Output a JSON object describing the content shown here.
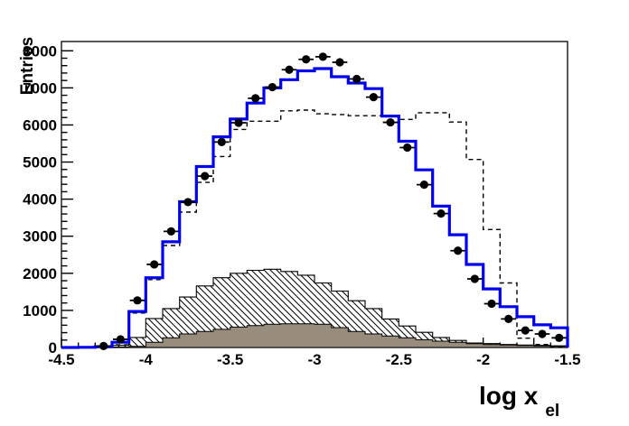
{
  "figure": {
    "ylabel": "Entries",
    "xlabel": "log x",
    "xlabel_subscript": "el",
    "background_color": "#ffffff",
    "frame_color": "#000000"
  },
  "chart_data": {
    "type": "histogram",
    "title": "",
    "xlabel": "log x_el",
    "ylabel": "Entries",
    "xlim": [
      -4.5,
      -1.5
    ],
    "ylim": [
      0,
      8250
    ],
    "bin_start": -4.5,
    "bin_width": 0.1,
    "grid": false,
    "legend": "none",
    "xticks": {
      "major": [
        -4.5,
        -4.0,
        -3.5,
        -3.0,
        -2.5,
        -2.0,
        -1.5
      ],
      "labels": [
        "-4.5",
        "-4",
        "-3.5",
        "-3",
        "-2.5",
        "-2",
        "-1.5"
      ],
      "minor_step": 0.1
    },
    "yticks": {
      "major_step": 1000,
      "labels": [
        "0",
        "1000",
        "2000",
        "3000",
        "4000",
        "5000",
        "6000",
        "7000",
        "8000"
      ],
      "minor_step": 200
    },
    "bin_centers": [
      -4.45,
      -4.35,
      -4.25,
      -4.15,
      -4.05,
      -3.95,
      -3.85,
      -3.75,
      -3.65,
      -3.55,
      -3.45,
      -3.35,
      -3.25,
      -3.15,
      -3.05,
      -2.95,
      -2.85,
      -2.75,
      -2.65,
      -2.55,
      -2.45,
      -2.35,
      -2.25,
      -2.15,
      -2.05,
      -1.95,
      -1.85,
      -1.75,
      -1.65,
      -1.55
    ],
    "series": [
      {
        "name": "data-points",
        "style": "black filled circle markers with horizontal error bars",
        "color": "#000000",
        "x": [
          -4.25,
          -4.15,
          -4.05,
          -3.95,
          -3.85,
          -3.75,
          -3.65,
          -3.55,
          -3.45,
          -3.35,
          -3.25,
          -3.15,
          -3.05,
          -2.95,
          -2.85,
          -2.75,
          -2.65,
          -2.55,
          -2.45,
          -2.35,
          -2.25,
          -2.15,
          -2.05,
          -1.95,
          -1.85,
          -1.75,
          -1.65,
          -1.55
        ],
        "values": [
          40,
          220,
          1270,
          2240,
          3130,
          3920,
          4620,
          5540,
          6060,
          6720,
          7020,
          7490,
          7770,
          7840,
          7690,
          7240,
          6750,
          6070,
          5390,
          4390,
          3610,
          2610,
          1850,
          1180,
          770,
          460,
          365,
          260
        ]
      },
      {
        "name": "blue-fit",
        "style": "solid step histogram line",
        "color": "#0000ee",
        "values": [
          0,
          5,
          20,
          140,
          970,
          1880,
          2850,
          3930,
          4880,
          5680,
          6160,
          6590,
          7000,
          7220,
          7460,
          7520,
          7300,
          7130,
          6980,
          6240,
          5560,
          4790,
          3810,
          3040,
          2240,
          1580,
          1100,
          830,
          610,
          530
        ]
      },
      {
        "name": "dashed-mc",
        "style": "dashed step histogram line",
        "color": "#000000",
        "values": [
          0,
          0,
          10,
          70,
          930,
          1830,
          2750,
          3650,
          4450,
          5150,
          5880,
          6100,
          6100,
          6380,
          6400,
          6300,
          6280,
          6250,
          6250,
          6230,
          6150,
          6330,
          6330,
          6080,
          5070,
          3180,
          1740,
          250,
          80,
          30
        ]
      },
      {
        "name": "hatched-mc",
        "style": "diagonal-hatched filled step histogram",
        "color": "#000000",
        "fill": "white with black \\\\ hatching",
        "values": [
          0,
          0,
          20,
          60,
          270,
          780,
          1050,
          1360,
          1660,
          1880,
          2000,
          2080,
          2110,
          2050,
          1950,
          1740,
          1520,
          1260,
          1050,
          770,
          580,
          410,
          270,
          190,
          120,
          105,
          80,
          65,
          55,
          45
        ]
      },
      {
        "name": "gray-mc",
        "style": "solid gray filled step histogram",
        "color": "#988c7d",
        "values": [
          0,
          0,
          10,
          15,
          30,
          140,
          260,
          365,
          430,
          490,
          550,
          590,
          625,
          640,
          640,
          625,
          535,
          430,
          365,
          310,
          260,
          210,
          170,
          140,
          105,
          80,
          65,
          55,
          45,
          35
        ]
      }
    ]
  }
}
